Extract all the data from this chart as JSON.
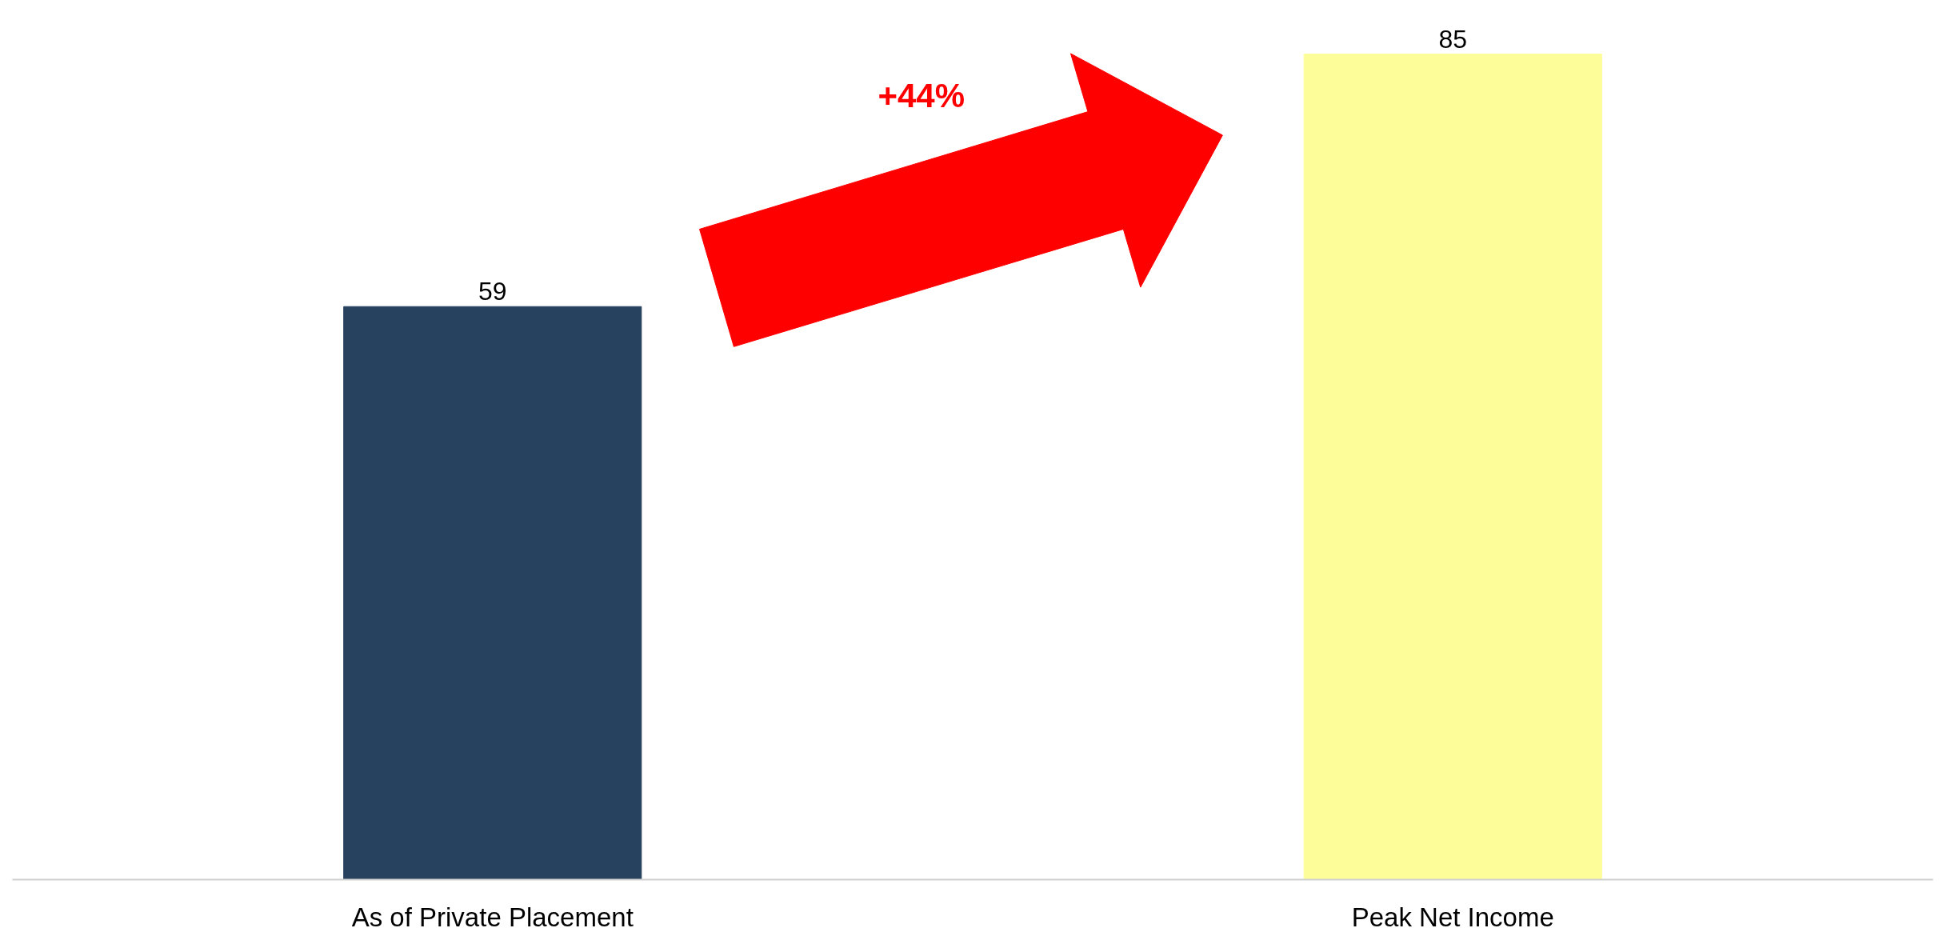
{
  "chart_data": {
    "type": "bar",
    "categories": [
      "As of Private Placement",
      "Peak Net Income"
    ],
    "values": [
      59,
      85
    ],
    "colors": [
      "#27425f",
      "#fdfe9a"
    ],
    "data_labels": true,
    "grid": false,
    "annotations": [
      "+44%"
    ]
  }
}
